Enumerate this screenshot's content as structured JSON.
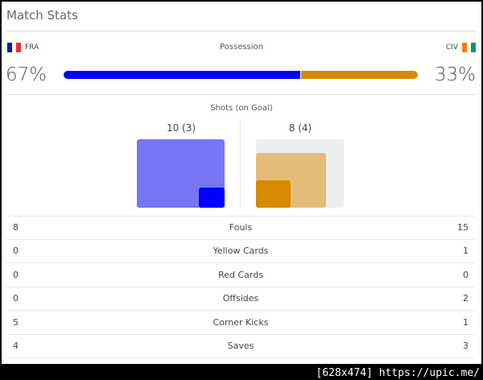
{
  "title": "Match Stats",
  "home": {
    "code": "FRA",
    "flag": [
      "#002395",
      "#ffffff",
      "#ed2939"
    ],
    "possession": "67%",
    "possession_value": 67,
    "shots": "10 (3)",
    "shots_total": 10,
    "shots_on_goal": 3,
    "color": "#0000ff",
    "light_color": "#7676f5"
  },
  "away": {
    "code": "CIV",
    "flag": [
      "#f77f00",
      "#ffffff",
      "#009e60"
    ],
    "possession": "33%",
    "possession_value": 33,
    "shots": "8 (4)",
    "shots_total": 8,
    "shots_on_goal": 4,
    "color": "#d68a00",
    "light_color": "#e3bd78"
  },
  "possession_label": "Possession",
  "shots_label": "Shots (on Goal)",
  "stats": [
    {
      "label": "Fouls",
      "home": "8",
      "away": "15"
    },
    {
      "label": "Yellow Cards",
      "home": "0",
      "away": "1"
    },
    {
      "label": "Red Cards",
      "home": "0",
      "away": "0"
    },
    {
      "label": "Offsides",
      "home": "0",
      "away": "2"
    },
    {
      "label": "Corner Kicks",
      "home": "5",
      "away": "1"
    },
    {
      "label": "Saves",
      "home": "4",
      "away": "3"
    }
  ],
  "watermark": "[628x474] https://upic.me/"
}
